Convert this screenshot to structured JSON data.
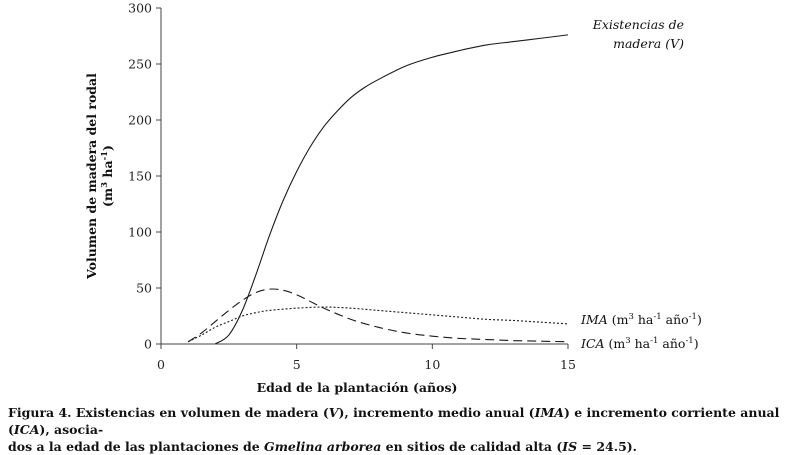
{
  "chart_data": {
    "type": "line",
    "title": "",
    "xlabel": "Edad de la plantación (años)",
    "ylabel_line1": "Volumen de madera del rodal",
    "ylabel_line2_prefix": "(m",
    "ylabel_line2_sup": "3",
    "ylabel_line2_mid": " ha",
    "ylabel_line2_sup2": "-1",
    "ylabel_line2_suffix": ")",
    "xlim": [
      0,
      15
    ],
    "ylim": [
      0,
      300
    ],
    "xticks": [
      0,
      5,
      10,
      15
    ],
    "yticks": [
      0,
      50,
      100,
      150,
      200,
      250,
      300
    ],
    "grid": false,
    "legend": "inline labels",
    "series": [
      {
        "name": "Existencias de madera (V)",
        "label_line1": "Existencias de",
        "label_line2": "madera (",
        "label_line2_it": "V",
        "label_line2_end": ")",
        "style": "solid",
        "x": [
          2,
          2.5,
          3,
          3.5,
          4,
          4.5,
          5,
          5.5,
          6,
          6.5,
          7,
          7.5,
          8,
          9,
          10,
          11,
          12,
          13,
          14,
          15
        ],
        "y": [
          0,
          8,
          30,
          62,
          97,
          128,
          154,
          176,
          194,
          208,
          220,
          229,
          236,
          248,
          256,
          262,
          267,
          270,
          273,
          276
        ]
      },
      {
        "name": "IMA",
        "label_it": "IMA",
        "label_unit": " (m",
        "label_sup1": "3",
        "label_mid1": " ha",
        "label_sup2": "-1",
        "label_mid2": " año",
        "label_sup3": "-1",
        "label_end": ")",
        "style": "dotted",
        "x": [
          1,
          1.5,
          2,
          2.5,
          3,
          3.5,
          4,
          5,
          6,
          7,
          8,
          9,
          10,
          11,
          12,
          13,
          14,
          15
        ],
        "y": [
          2,
          8,
          15,
          20,
          25,
          28,
          30,
          32,
          33,
          32,
          30,
          28,
          26,
          24,
          22,
          21,
          19.5,
          18
        ]
      },
      {
        "name": "ICA",
        "label_it": "ICA",
        "label_unit": " (m",
        "label_sup1": "3",
        "label_mid1": " ha",
        "label_sup2": "-1",
        "label_mid2": " año",
        "label_sup3": "-1",
        "label_end": ")",
        "style": "dashed",
        "x": [
          1,
          1.5,
          2,
          2.5,
          3,
          3.5,
          4,
          4.5,
          5,
          5.5,
          6,
          7,
          8,
          9,
          10,
          11,
          12,
          13,
          14,
          15
        ],
        "y": [
          2,
          10,
          20,
          30,
          39,
          46,
          49,
          48,
          44,
          38,
          32,
          22,
          15,
          10,
          7,
          5,
          4,
          3,
          2.5,
          2
        ]
      }
    ]
  },
  "caption": {
    "line1_a": "Figura 4. Existencias en volumen de madera (",
    "line1_b": "V",
    "line1_c": "), incremento medio anual (",
    "line1_d": "IMA",
    "line1_e": ") e incremento corriente anual (",
    "line1_f": "ICA",
    "line1_g": "), asocia-",
    "line2_a": "dos a la edad de las plantaciones de ",
    "line2_b": "Gmelina arborea",
    "line2_c": " en sitios de calidad alta (",
    "line2_d": "IS",
    "line2_e": " = 24.5)."
  }
}
